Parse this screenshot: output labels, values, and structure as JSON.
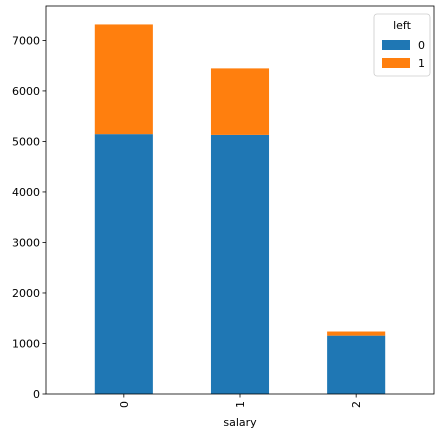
{
  "chart_data": {
    "type": "bar",
    "stacked": true,
    "title": "",
    "xlabel": "salary",
    "ylabel": "",
    "categories": [
      "0",
      "1",
      "2"
    ],
    "series": [
      {
        "name": "0",
        "values": [
          5144,
          5129,
          1155
        ],
        "color": "#1f77b4"
      },
      {
        "name": "1",
        "values": [
          2172,
          1317,
          82
        ],
        "color": "#ff7f0e"
      }
    ],
    "ylim": [
      0,
      7681
    ],
    "yticks": [
      0,
      1000,
      2000,
      3000,
      4000,
      5000,
      6000,
      7000
    ],
    "x_tick_rotation": "vertical",
    "grid": false,
    "legend": {
      "title": "left",
      "placement": "top-right"
    }
  }
}
